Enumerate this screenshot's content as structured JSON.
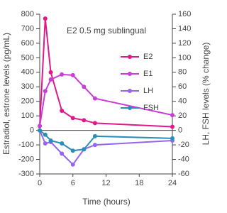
{
  "chart_data": {
    "type": "line",
    "annotation": "E2 0.5 mg sublingual",
    "x_label": "Time (hours)",
    "y_label": "Estradiol, estrone levels (pg/mL)",
    "y2_label": "LH, FSH levels (% change)",
    "xlim": [
      0,
      24
    ],
    "xticks": [
      0,
      6,
      12,
      18,
      24
    ],
    "ylim": [
      -300,
      800
    ],
    "yticks": [
      -300,
      -200,
      -100,
      0,
      100,
      200,
      300,
      400,
      500,
      600,
      700,
      800
    ],
    "y2lim": [
      -60,
      160
    ],
    "y2ticks": [
      -60,
      -40,
      -20,
      0,
      20,
      40,
      60,
      80,
      100,
      120,
      140,
      160
    ],
    "series": [
      {
        "name": "E2",
        "color": "#e0198a",
        "x": [
          0,
          1,
          2,
          4,
          6,
          8,
          10,
          24
        ],
        "values": [
          30,
          770,
          400,
          135,
          85,
          70,
          50,
          25
        ]
      },
      {
        "name": "E1",
        "color": "#c83fd6",
        "x": [
          0,
          1,
          2,
          4,
          6,
          8,
          10,
          24
        ],
        "values": [
          30,
          270,
          350,
          385,
          380,
          300,
          220,
          105
        ]
      },
      {
        "name": "LH",
        "color": "#9466f0",
        "axis": "y2",
        "x": [
          0,
          1,
          2,
          4,
          6,
          8,
          10,
          24
        ],
        "values": [
          0,
          -18,
          -16,
          -32,
          -47,
          -26,
          -20,
          -14
        ]
      },
      {
        "name": "FSH",
        "color": "#2a8fb8",
        "axis": "y2",
        "x": [
          0,
          1,
          2,
          4,
          6,
          8,
          10,
          24
        ],
        "values": [
          0,
          -6,
          -14,
          -18,
          -28,
          -26,
          -8,
          -11
        ]
      }
    ]
  }
}
